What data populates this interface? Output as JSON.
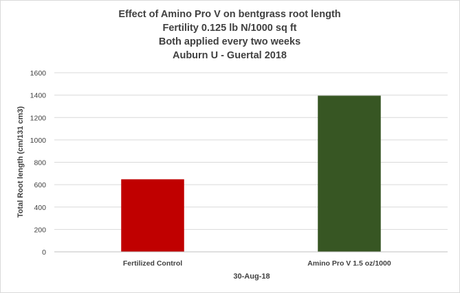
{
  "chart_data": {
    "type": "bar",
    "title_lines": [
      "Effect of Amino Pro V on bentgrass root length",
      "Fertility 0.125 lb N/1000 sq ft",
      "Both applied every two weeks",
      "Auburn U - Guertal 2018"
    ],
    "categories": [
      "Fertilized Control",
      "Amino Pro V 1.5 oz/1000"
    ],
    "values": [
      648,
      1395
    ],
    "colors": [
      "#c00000",
      "#375623"
    ],
    "xlabel": "30-Aug-18",
    "ylabel": "Total Root length (cm/131 cm3)",
    "ylim": [
      0,
      1600
    ],
    "yticks": [
      0,
      200,
      400,
      600,
      800,
      1000,
      1200,
      1400,
      1600
    ],
    "grid": true,
    "legend": "none"
  }
}
